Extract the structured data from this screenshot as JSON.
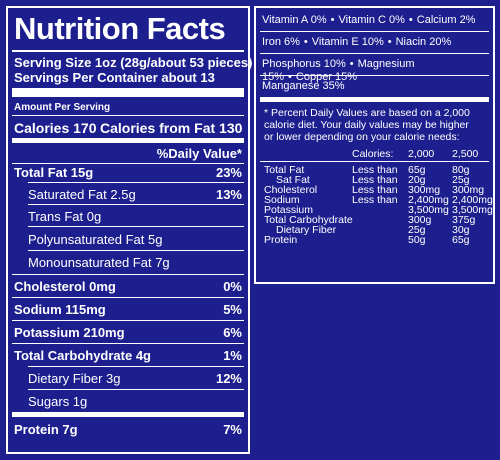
{
  "title": "Nutrition Facts",
  "serving_size": "Serving Size 1oz (28g/about 53 pieces)",
  "servings_per_container": "Servings Per Container about 13",
  "amount_per_serving": "Amount Per Serving",
  "calories": "Calories 170",
  "calories_from_fat": "Calories from Fat 130",
  "daily_value_header": "%Daily Value*",
  "nutrients": [
    {
      "label": "Total Fat 15g",
      "dv": "23%"
    },
    {
      "label": "Saturated Fat 2.5g",
      "dv": "13%"
    },
    {
      "label": "Trans Fat 0g",
      "dv": ""
    },
    {
      "label": "Polyunsaturated Fat 5g",
      "dv": ""
    },
    {
      "label": "Monounsaturated Fat 7g",
      "dv": ""
    },
    {
      "label": "Cholesterol 0mg",
      "dv": "0%"
    },
    {
      "label": "Sodium 115mg",
      "dv": "5%"
    },
    {
      "label": "Potassium 210mg",
      "dv": "6%"
    },
    {
      "label": "Total Carbohydrate 4g",
      "dv": "1%"
    },
    {
      "label": "Dietary Fiber 3g",
      "dv": "12%"
    },
    {
      "label": "Sugars 1g",
      "dv": ""
    },
    {
      "label": "Protein 7g",
      "dv": "7%"
    }
  ],
  "vitamins": [
    [
      "Vitamin A 0%",
      "Vitamin C 0%",
      "Calcium 2%"
    ],
    [
      "Iron 6%",
      "Vitamin E 10%",
      "Niacin 20%"
    ],
    [
      "Phosphorus 10%",
      "Magnesium 15%",
      "Copper 15%"
    ],
    [
      "Manganese 35%"
    ]
  ],
  "footnote": [
    "* Percent Daily Values are based on a 2,000",
    "calorie diet. Your daily values may be higher",
    "or lower depending on your calorie needs:"
  ],
  "dv_table": {
    "header": [
      "Calories:",
      "2,000",
      "2,500"
    ],
    "rows": [
      [
        "Total Fat",
        "Less than",
        "65g",
        "80g"
      ],
      [
        "Sat Fat",
        "Less than",
        "20g",
        "25g"
      ],
      [
        "Cholesterol",
        "Less than",
        "300mg",
        "300mg"
      ],
      [
        "Sodium",
        "Less than",
        "2,400mg",
        "2,400mg"
      ],
      [
        "Potassium",
        "",
        "3,500mg",
        "3,500mg"
      ],
      [
        "Total Carbohydrate",
        "",
        "300g",
        "375g"
      ],
      [
        "Dietary Fiber",
        "",
        "25g",
        "30g"
      ],
      [
        "Protein",
        "",
        "50g",
        "65g"
      ]
    ]
  }
}
